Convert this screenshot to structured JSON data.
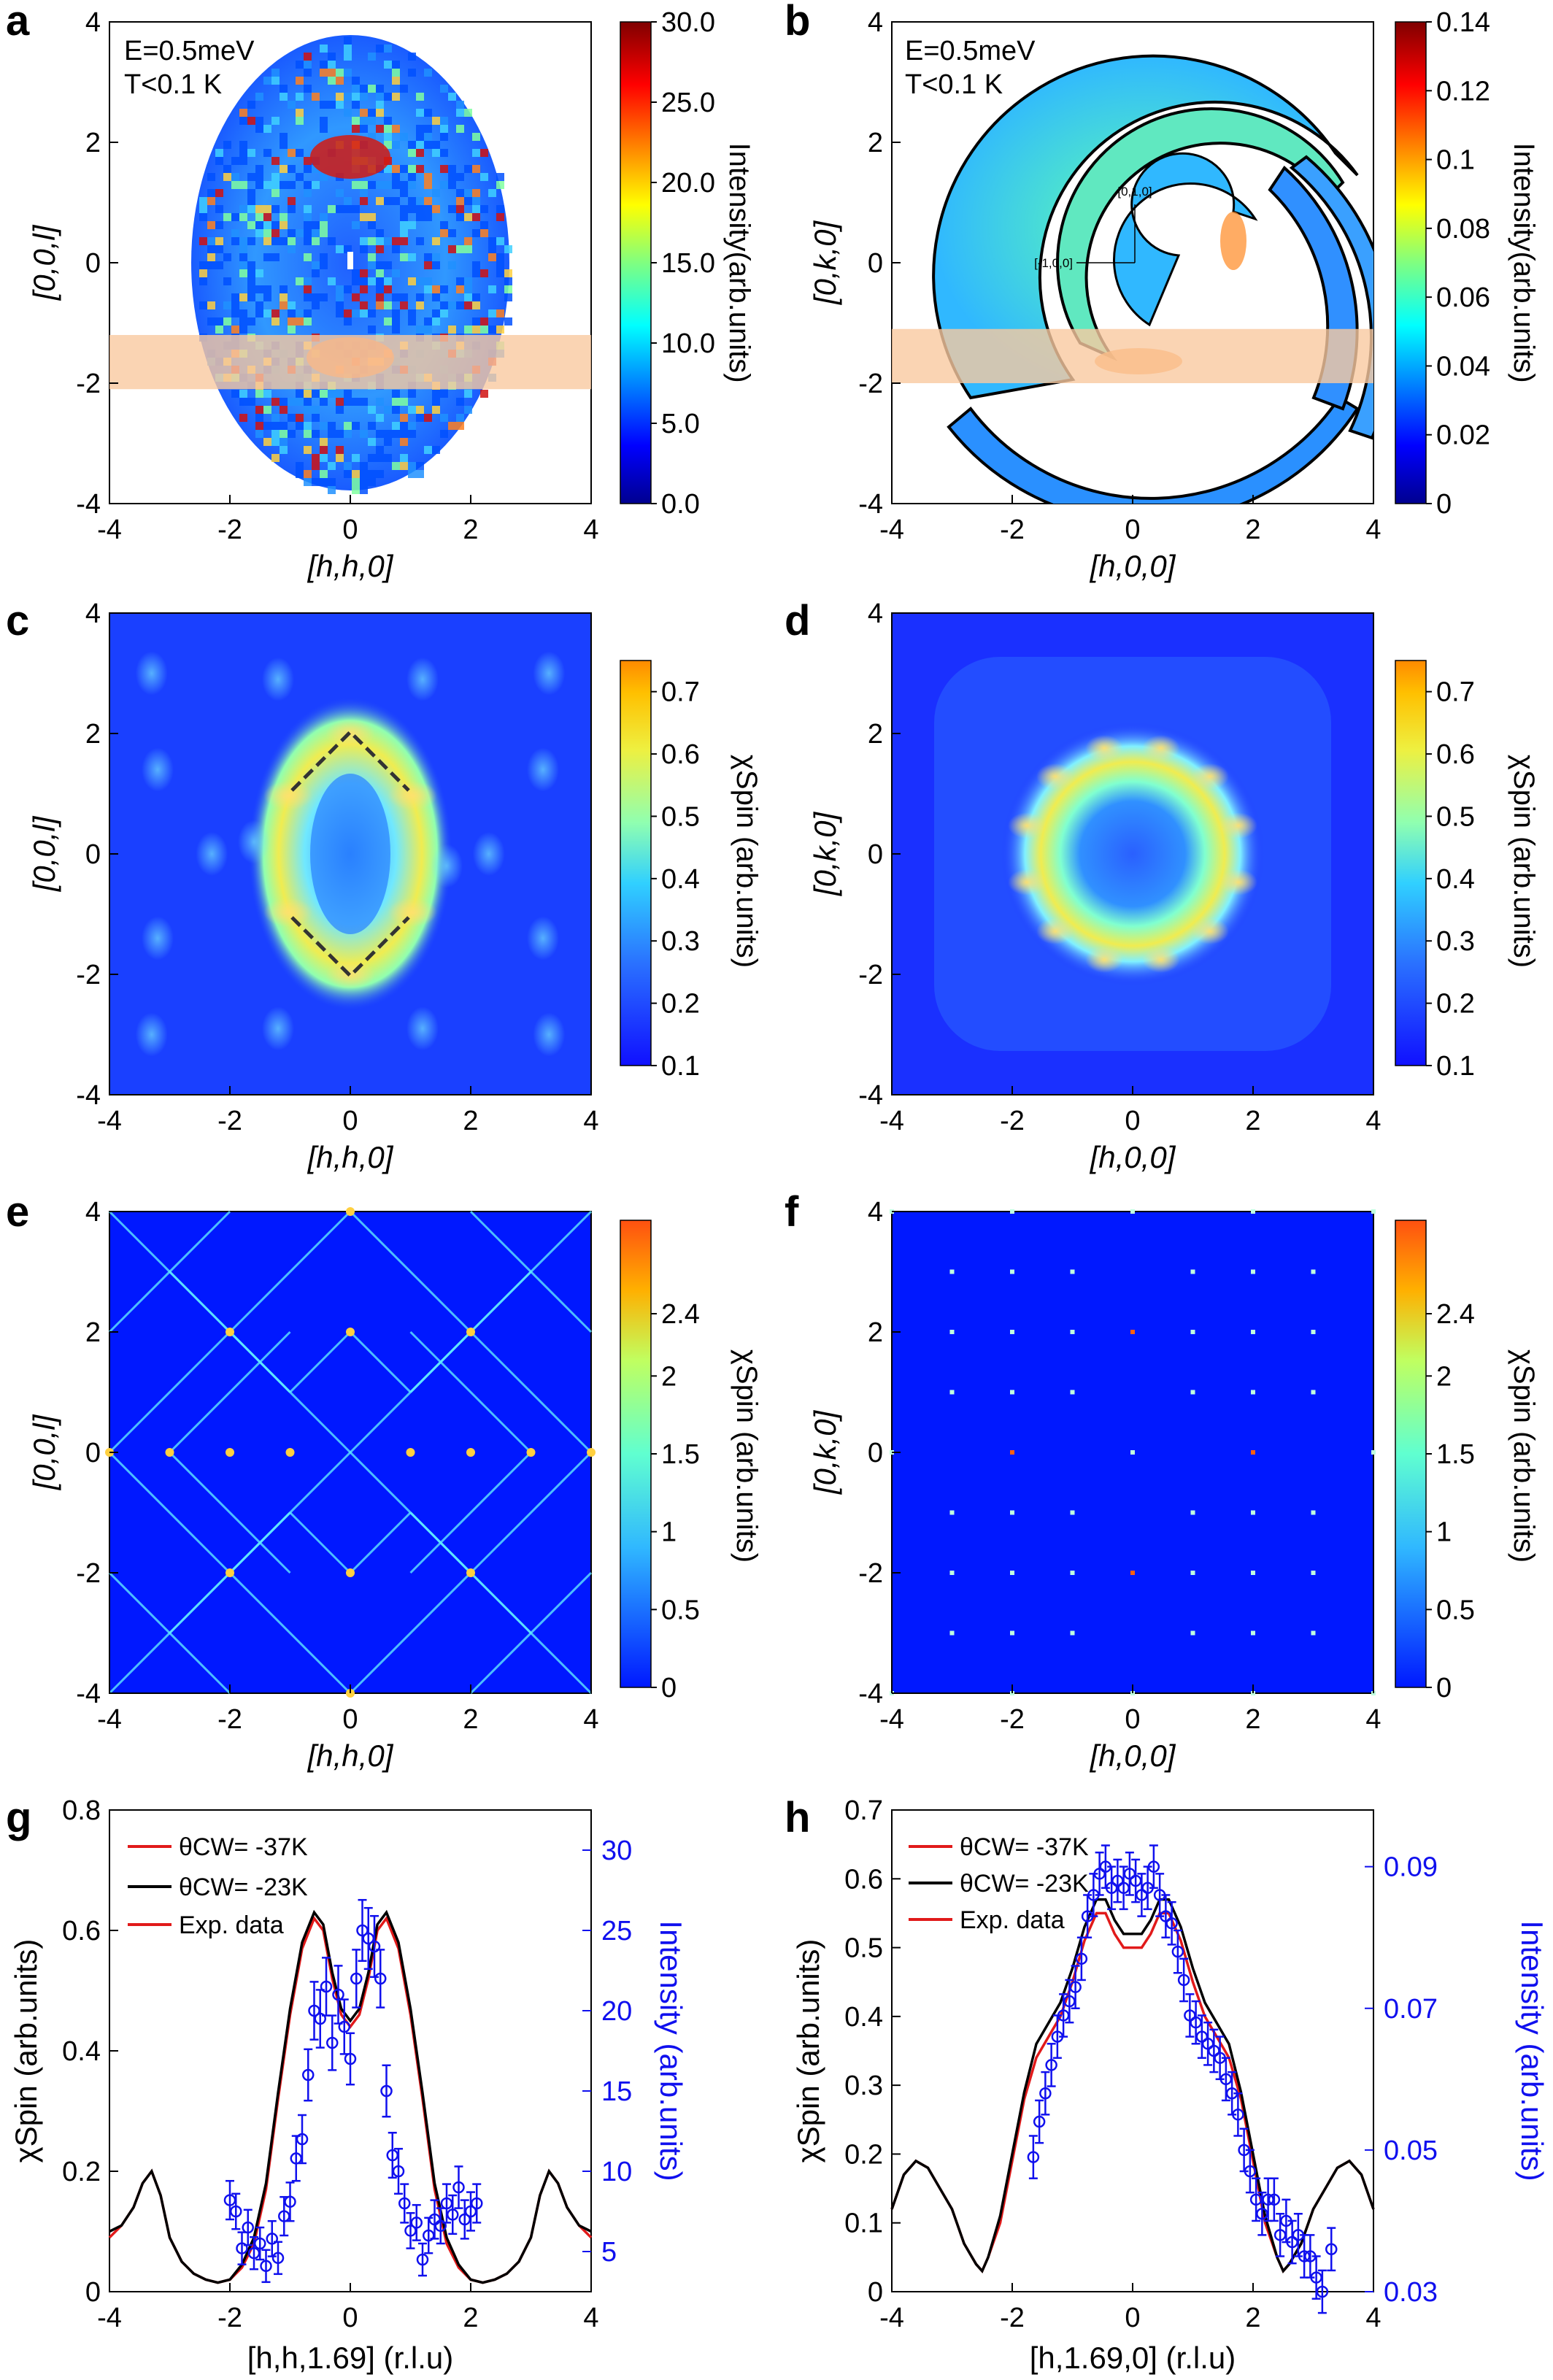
{
  "colors": {
    "jet": [
      "#00008f",
      "#0000ff",
      "#0080ff",
      "#00ffff",
      "#80ff80",
      "#ffff00",
      "#ff8000",
      "#ff0000",
      "#800000"
    ],
    "parula_like": [
      "#1010ff",
      "#2a60ff",
      "#30c8ff",
      "#80ffc0",
      "#e0f040",
      "#ffc000",
      "#ff8000"
    ],
    "spin_like": [
      "#0018ff",
      "#40d8ff",
      "#a0ff80",
      "#ff4000",
      "#ff6010"
    ],
    "red": "#e11a1a",
    "black": "#000000",
    "blue": "#1010ee",
    "band": "#f9c9a0"
  },
  "chart_data": [
    {
      "panel": "a",
      "type": "heatmap",
      "annotation": [
        "E=0.5meV",
        "T<0.1 K"
      ],
      "xlabel": "[h,h,0]",
      "ylabel": "[0,0,l]",
      "xlim": [
        -4,
        4
      ],
      "ylim": [
        -4,
        4
      ],
      "xticks": [
        "-4",
        "-2",
        "0",
        "2",
        "4"
      ],
      "yticks": [
        "-4",
        "-2",
        "0",
        "2",
        "4"
      ],
      "colorbar": {
        "label": "Intensity(arb.units)",
        "range": [
          0,
          30
        ],
        "ticks": [
          "0.0",
          "5.0",
          "10.0",
          "15.0",
          "20.0",
          "25.0",
          "30.0"
        ]
      },
      "highlight_band_l": [
        -2.1,
        -1.2
      ]
    },
    {
      "panel": "b",
      "type": "heatmap",
      "annotation": [
        "E=0.5meV",
        "T<0.1 K"
      ],
      "xlabel": "[h,0,0]",
      "ylabel": "[0,k,0]",
      "xlim": [
        -4,
        4
      ],
      "ylim": [
        -4,
        4
      ],
      "xticks": [
        "-4",
        "-2",
        "0",
        "2",
        "4"
      ],
      "yticks": [
        "-4",
        "-2",
        "0",
        "2",
        "4"
      ],
      "colorbar": {
        "label": "Intensity(arb.units)",
        "range": [
          0,
          0.14
        ],
        "ticks": [
          "0",
          "0.02",
          "0.04",
          "0.06",
          "0.08",
          "0.1",
          "0.12",
          "0.14"
        ]
      },
      "inset_axes": [
        "[0,1,0]",
        "[-1,0,0]"
      ],
      "highlight_band_k": [
        -2.0,
        -1.1
      ]
    },
    {
      "panel": "c",
      "type": "heatmap",
      "xlabel": "[h,h,0]",
      "ylabel": "[0,0,l]",
      "xlim": [
        -4,
        4
      ],
      "ylim": [
        -4,
        4
      ],
      "xticks": [
        "-4",
        "-2",
        "0",
        "2",
        "4"
      ],
      "yticks": [
        "-4",
        "-2",
        "0",
        "2",
        "4"
      ],
      "colorbar": {
        "label": "χSpin (arb.units)",
        "range": [
          0.1,
          0.75
        ],
        "ticks": [
          "0.1",
          "0.2",
          "0.3",
          "0.4",
          "0.5",
          "0.6",
          "0.7"
        ]
      }
    },
    {
      "panel": "d",
      "type": "heatmap",
      "xlabel": "[h,0,0]",
      "ylabel": "[0,k,0]",
      "xlim": [
        -4,
        4
      ],
      "ylim": [
        -4,
        4
      ],
      "xticks": [
        "-4",
        "-2",
        "0",
        "2",
        "4"
      ],
      "yticks": [
        "-4",
        "-2",
        "0",
        "2",
        "4"
      ],
      "colorbar": {
        "label": "χSpin (arb.units)",
        "range": [
          0.1,
          0.75
        ],
        "ticks": [
          "0.1",
          "0.2",
          "0.3",
          "0.4",
          "0.5",
          "0.6",
          "0.7"
        ]
      }
    },
    {
      "panel": "e",
      "type": "heatmap",
      "xlabel": "[h,h,0]",
      "ylabel": "[0,0,l]",
      "xlim": [
        -4,
        4
      ],
      "ylim": [
        -4,
        4
      ],
      "xticks": [
        "-4",
        "-2",
        "0",
        "2",
        "4"
      ],
      "yticks": [
        "-4",
        "-2",
        "0",
        "2",
        "4"
      ],
      "colorbar": {
        "label": "χSpin (arb.units)",
        "range": [
          0,
          3
        ],
        "ticks": [
          "0",
          "0.5",
          "1",
          "1.5",
          "2",
          "2.4"
        ]
      }
    },
    {
      "panel": "f",
      "type": "heatmap",
      "xlabel": "[h,0,0]",
      "ylabel": "[0,k,0]",
      "xlim": [
        -4,
        4
      ],
      "ylim": [
        -4,
        4
      ],
      "xticks": [
        "-4",
        "-2",
        "0",
        "2",
        "4"
      ],
      "yticks": [
        "-4",
        "-2",
        "0",
        "2",
        "4"
      ],
      "colorbar": {
        "label": "χSpin (arb.units)",
        "range": [
          0,
          3
        ],
        "ticks": [
          "0",
          "0.5",
          "1",
          "1.5",
          "2",
          "2.4"
        ]
      }
    },
    {
      "panel": "g",
      "type": "line",
      "xlabel": "[h,h,1.69] (r.l.u)",
      "ylabel": "χSpin (arb.units)",
      "y2label": "Intensity (arb.units)",
      "xlim": [
        -4,
        4
      ],
      "ylim": [
        0,
        0.8
      ],
      "y2lim": [
        2.5,
        32.5
      ],
      "xticks": [
        "-4",
        "-2",
        "0",
        "2",
        "4"
      ],
      "yticks": [
        "0",
        "0.2",
        "0.4",
        "0.6",
        "0.8"
      ],
      "y2ticks": [
        "5",
        "10",
        "15",
        "20",
        "25",
        "30"
      ],
      "legend": [
        "θCW= -37K",
        "θCW= -23K",
        "Exp. data"
      ],
      "series": [
        {
          "name": "θCW= -37K",
          "color": "#e11a1a",
          "x": [
            -4,
            -3.8,
            -3.6,
            -3.45,
            -3.3,
            -3.15,
            -3.0,
            -2.8,
            -2.6,
            -2.4,
            -2.2,
            -2.0,
            -1.8,
            -1.6,
            -1.4,
            -1.2,
            -1.0,
            -0.8,
            -0.6,
            -0.45,
            -0.3,
            -0.15,
            0,
            0.15,
            0.3,
            0.45,
            0.6,
            0.8,
            1.0,
            1.2,
            1.4,
            1.6,
            1.8,
            2.0,
            2.2,
            2.4,
            2.6,
            2.8,
            3.0,
            3.15,
            3.3,
            3.45,
            3.6,
            3.8,
            4
          ],
          "y": [
            0.09,
            0.11,
            0.14,
            0.18,
            0.2,
            0.16,
            0.09,
            0.05,
            0.03,
            0.02,
            0.015,
            0.02,
            0.04,
            0.08,
            0.17,
            0.32,
            0.46,
            0.57,
            0.62,
            0.6,
            0.52,
            0.46,
            0.44,
            0.46,
            0.52,
            0.6,
            0.62,
            0.57,
            0.46,
            0.32,
            0.17,
            0.08,
            0.04,
            0.02,
            0.015,
            0.02,
            0.03,
            0.05,
            0.09,
            0.16,
            0.2,
            0.18,
            0.14,
            0.11,
            0.09
          ]
        },
        {
          "name": "θCW= -23K",
          "color": "#000000",
          "x": [
            -4,
            -3.8,
            -3.6,
            -3.45,
            -3.3,
            -3.15,
            -3.0,
            -2.8,
            -2.6,
            -2.4,
            -2.2,
            -2.0,
            -1.8,
            -1.6,
            -1.4,
            -1.2,
            -1.0,
            -0.8,
            -0.6,
            -0.45,
            -0.3,
            -0.15,
            0,
            0.15,
            0.3,
            0.45,
            0.6,
            0.8,
            1.0,
            1.2,
            1.4,
            1.6,
            1.8,
            2.0,
            2.2,
            2.4,
            2.6,
            2.8,
            3.0,
            3.15,
            3.3,
            3.45,
            3.6,
            3.8,
            4
          ],
          "y": [
            0.1,
            0.11,
            0.14,
            0.18,
            0.2,
            0.16,
            0.09,
            0.05,
            0.03,
            0.02,
            0.015,
            0.02,
            0.045,
            0.09,
            0.18,
            0.33,
            0.47,
            0.58,
            0.63,
            0.61,
            0.53,
            0.47,
            0.45,
            0.47,
            0.53,
            0.61,
            0.63,
            0.58,
            0.47,
            0.33,
            0.18,
            0.09,
            0.045,
            0.02,
            0.015,
            0.02,
            0.03,
            0.05,
            0.09,
            0.16,
            0.2,
            0.18,
            0.14,
            0.11,
            0.1
          ]
        }
      ],
      "points": {
        "name": "Exp. data",
        "color": "#1010ee",
        "axis": "y2",
        "x": [
          -2.0,
          -1.9,
          -1.8,
          -1.7,
          -1.6,
          -1.5,
          -1.4,
          -1.3,
          -1.2,
          -1.1,
          -1.0,
          -0.9,
          -0.8,
          -0.7,
          -0.6,
          -0.5,
          -0.4,
          -0.3,
          -0.2,
          -0.1,
          0.0,
          0.1,
          0.2,
          0.3,
          0.4,
          0.5,
          0.6,
          0.7,
          0.8,
          0.9,
          1.0,
          1.1,
          1.2,
          1.3,
          1.4,
          1.5,
          1.6,
          1.7,
          1.8,
          1.9,
          2.0,
          2.1
        ],
        "y": [
          8.2,
          7.5,
          5.2,
          6.5,
          4.9,
          5.5,
          4.1,
          5.8,
          4.6,
          7.2,
          8.1,
          10.8,
          12.0,
          16.0,
          20.0,
          19.5,
          21.5,
          18.0,
          21.0,
          19.0,
          17.0,
          22.0,
          25.0,
          24.5,
          24.0,
          22.0,
          15.0,
          11.0,
          10.0,
          8.0,
          6.3,
          6.8,
          4.5,
          6.0,
          7.0,
          6.6,
          8.0,
          7.3,
          9.0,
          7.0,
          7.5,
          8.0
        ],
        "err": [
          1.2,
          1.1,
          1.0,
          1.1,
          1.0,
          1.0,
          1.0,
          1.1,
          1.0,
          1.2,
          1.2,
          1.4,
          1.5,
          1.6,
          1.8,
          1.8,
          1.8,
          1.7,
          1.8,
          1.7,
          1.6,
          1.8,
          1.9,
          1.9,
          1.9,
          1.8,
          1.6,
          1.4,
          1.4,
          1.2,
          1.1,
          1.1,
          1.0,
          1.1,
          1.2,
          1.1,
          1.2,
          1.2,
          1.3,
          1.2,
          1.2,
          1.2
        ]
      }
    },
    {
      "panel": "h",
      "type": "line",
      "xlabel": "[h,1.69,0] (r.l.u)",
      "ylabel": "χSpin (arb.units)",
      "y2label": "Intensity (arb.units)",
      "xlim": [
        -4,
        4
      ],
      "ylim": [
        0,
        0.7
      ],
      "y2lim": [
        0.03,
        0.098
      ],
      "xticks": [
        "-4",
        "-2",
        "0",
        "2",
        "4"
      ],
      "yticks": [
        "0",
        "0.1",
        "0.2",
        "0.3",
        "0.4",
        "0.5",
        "0.6",
        "0.7"
      ],
      "y2ticks": [
        "0.03",
        "0.05",
        "0.07",
        "0.09"
      ],
      "legend": [
        "θCW= -37K",
        "θCW= -23K",
        "Exp. data"
      ],
      "series": [
        {
          "name": "θCW= -37K",
          "color": "#e11a1a",
          "x": [
            -4,
            -3.8,
            -3.6,
            -3.4,
            -3.2,
            -3.0,
            -2.8,
            -2.6,
            -2.5,
            -2.4,
            -2.2,
            -2.0,
            -1.8,
            -1.6,
            -1.4,
            -1.2,
            -1.0,
            -0.8,
            -0.6,
            -0.45,
            -0.3,
            -0.15,
            0,
            0.15,
            0.3,
            0.45,
            0.6,
            0.8,
            1.0,
            1.2,
            1.4,
            1.6,
            1.8,
            2.0,
            2.2,
            2.4,
            2.5,
            2.6,
            2.8,
            3.0,
            3.2,
            3.4,
            3.6,
            3.8,
            4
          ],
          "y": [
            0.12,
            0.17,
            0.19,
            0.18,
            0.15,
            0.12,
            0.07,
            0.04,
            0.03,
            0.05,
            0.1,
            0.19,
            0.28,
            0.34,
            0.37,
            0.4,
            0.45,
            0.51,
            0.55,
            0.55,
            0.52,
            0.5,
            0.5,
            0.5,
            0.52,
            0.55,
            0.55,
            0.51,
            0.45,
            0.4,
            0.37,
            0.34,
            0.28,
            0.19,
            0.1,
            0.05,
            0.03,
            0.04,
            0.07,
            0.12,
            0.15,
            0.18,
            0.19,
            0.17,
            0.12
          ]
        },
        {
          "name": "θCW= -23K",
          "color": "#000000",
          "x": [
            -4,
            -3.8,
            -3.6,
            -3.4,
            -3.2,
            -3.0,
            -2.8,
            -2.6,
            -2.5,
            -2.4,
            -2.2,
            -2.0,
            -1.8,
            -1.6,
            -1.4,
            -1.2,
            -1.0,
            -0.8,
            -0.6,
            -0.45,
            -0.3,
            -0.15,
            0,
            0.15,
            0.3,
            0.45,
            0.6,
            0.8,
            1.0,
            1.2,
            1.4,
            1.6,
            1.8,
            2.0,
            2.2,
            2.4,
            2.5,
            2.6,
            2.8,
            3.0,
            3.2,
            3.4,
            3.6,
            3.8,
            4
          ],
          "y": [
            0.12,
            0.17,
            0.19,
            0.18,
            0.15,
            0.12,
            0.07,
            0.04,
            0.03,
            0.05,
            0.11,
            0.2,
            0.29,
            0.36,
            0.39,
            0.42,
            0.47,
            0.53,
            0.57,
            0.57,
            0.54,
            0.52,
            0.52,
            0.52,
            0.54,
            0.57,
            0.57,
            0.53,
            0.47,
            0.42,
            0.39,
            0.36,
            0.29,
            0.2,
            0.11,
            0.05,
            0.03,
            0.04,
            0.07,
            0.12,
            0.15,
            0.18,
            0.19,
            0.17,
            0.12
          ]
        }
      ],
      "points": {
        "name": "Exp. data",
        "color": "#1010ee",
        "axis": "y2",
        "x": [
          -1.65,
          -1.55,
          -1.45,
          -1.35,
          -1.25,
          -1.15,
          -1.05,
          -0.95,
          -0.85,
          -0.75,
          -0.65,
          -0.55,
          -0.45,
          -0.35,
          -0.25,
          -0.15,
          -0.05,
          0.05,
          0.15,
          0.25,
          0.35,
          0.45,
          0.55,
          0.65,
          0.75,
          0.85,
          0.95,
          1.05,
          1.15,
          1.25,
          1.35,
          1.45,
          1.55,
          1.65,
          1.75,
          1.85,
          1.95,
          2.05,
          2.15,
          2.25,
          2.35,
          2.45,
          2.55,
          2.65,
          2.75,
          2.85,
          2.95,
          3.05,
          3.15,
          3.3
        ],
        "y": [
          0.049,
          0.054,
          0.058,
          0.062,
          0.066,
          0.069,
          0.071,
          0.073,
          0.077,
          0.083,
          0.086,
          0.089,
          0.09,
          0.087,
          0.088,
          0.087,
          0.089,
          0.088,
          0.086,
          0.087,
          0.09,
          0.086,
          0.083,
          0.082,
          0.078,
          0.074,
          0.069,
          0.068,
          0.066,
          0.065,
          0.064,
          0.063,
          0.06,
          0.058,
          0.055,
          0.05,
          0.047,
          0.043,
          0.041,
          0.043,
          0.043,
          0.038,
          0.04,
          0.037,
          0.038,
          0.035,
          0.035,
          0.032,
          0.03,
          0.036
        ],
        "err": [
          0.003,
          0.003,
          0.003,
          0.003,
          0.003,
          0.003,
          0.003,
          0.003,
          0.003,
          0.003,
          0.003,
          0.003,
          0.003,
          0.003,
          0.003,
          0.003,
          0.003,
          0.003,
          0.003,
          0.003,
          0.003,
          0.003,
          0.003,
          0.003,
          0.003,
          0.003,
          0.003,
          0.003,
          0.003,
          0.003,
          0.003,
          0.003,
          0.003,
          0.003,
          0.003,
          0.003,
          0.003,
          0.003,
          0.003,
          0.003,
          0.003,
          0.003,
          0.003,
          0.003,
          0.003,
          0.003,
          0.003,
          0.003,
          0.003,
          0.003
        ]
      }
    }
  ]
}
